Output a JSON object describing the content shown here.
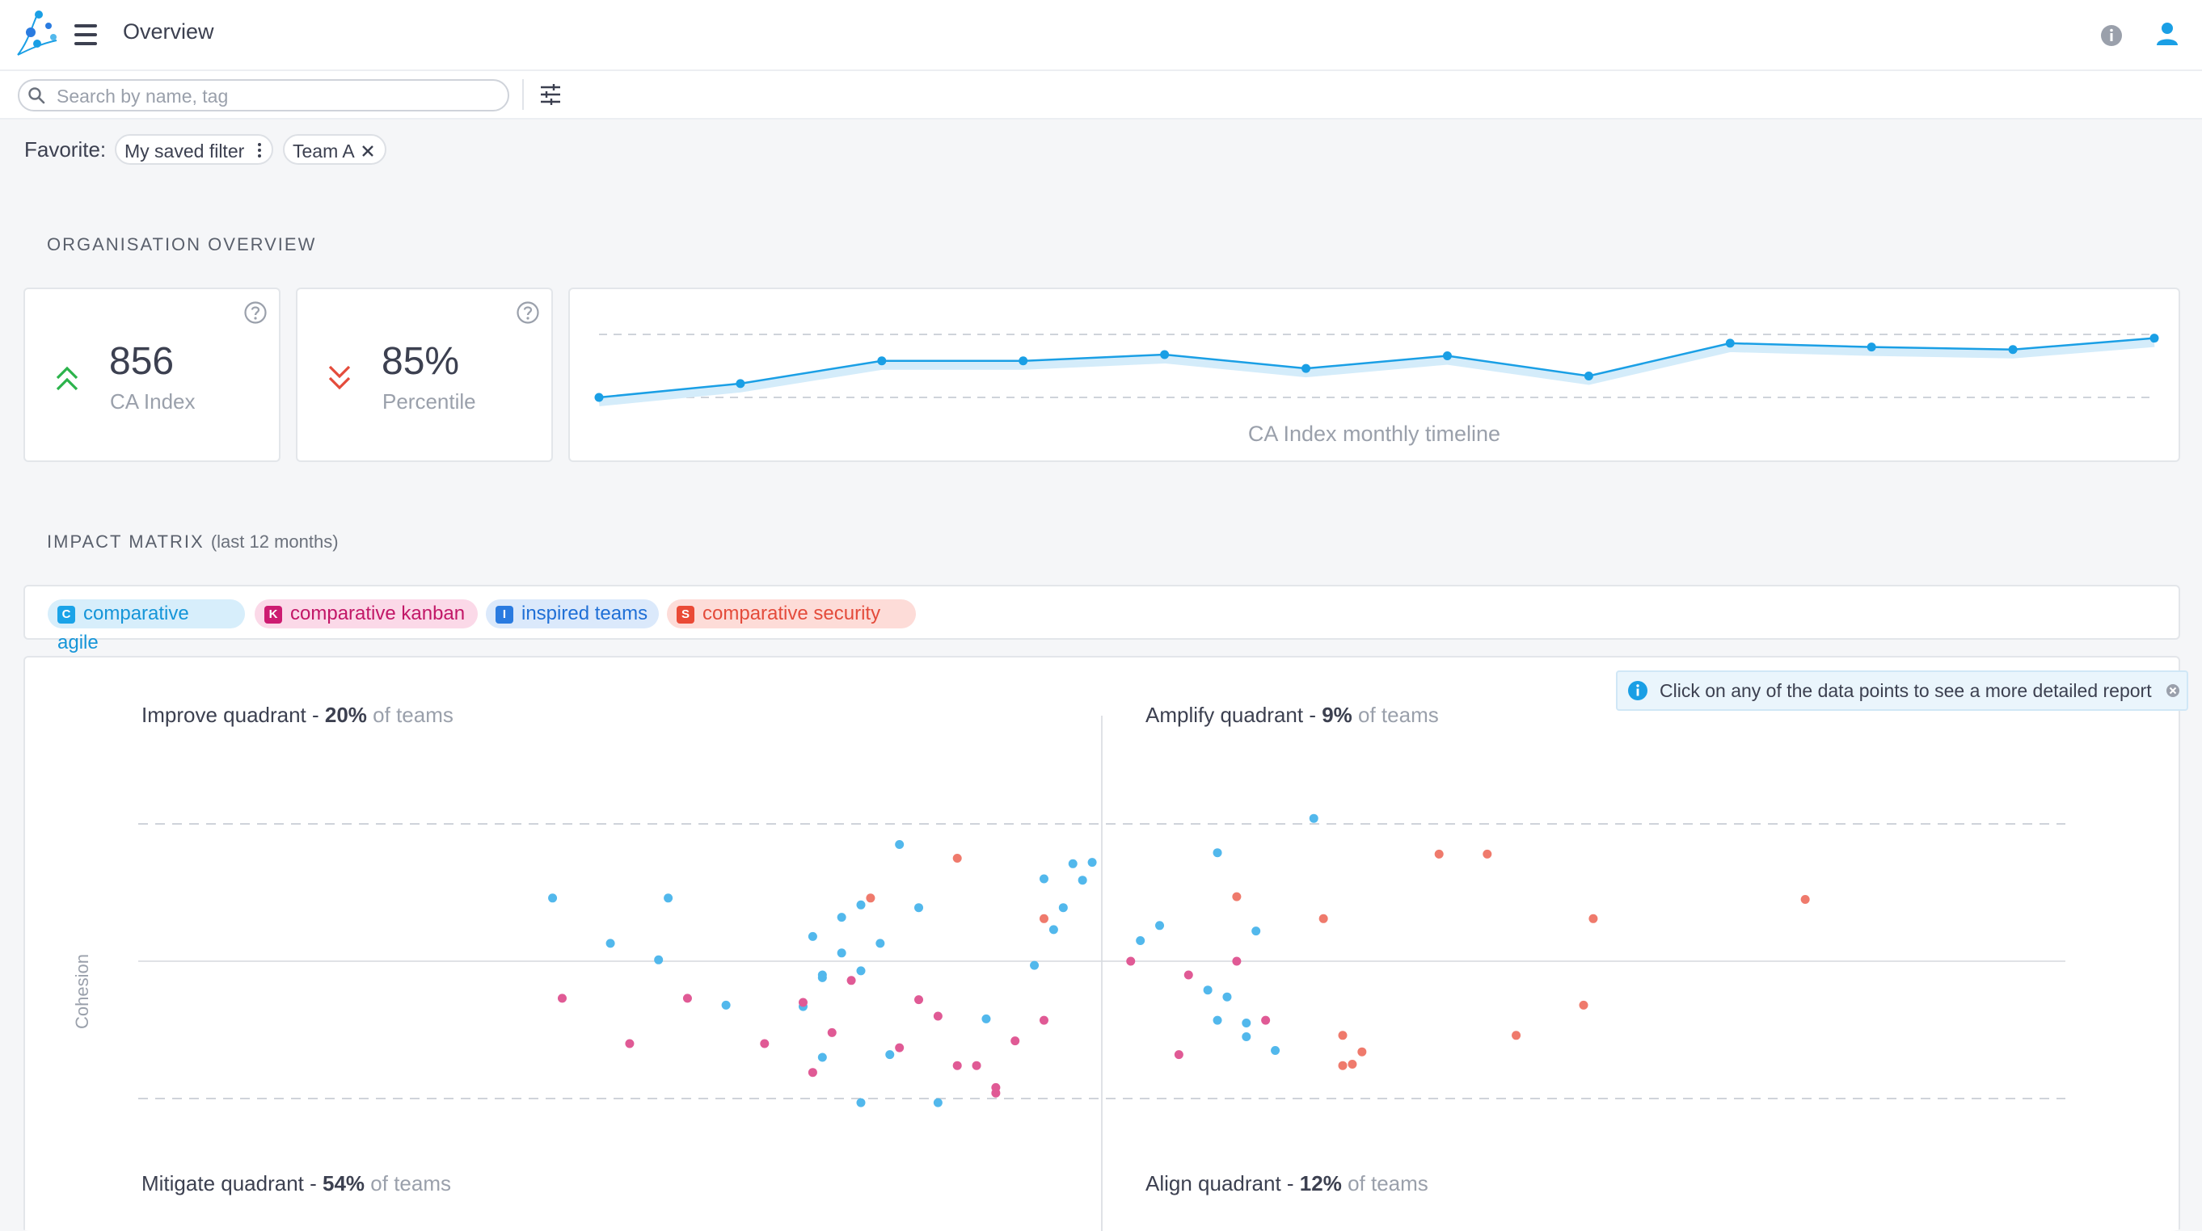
{
  "header": {
    "title": "Overview"
  },
  "search": {
    "placeholder": "Search by name, tag"
  },
  "favorites": {
    "label": "Favorite:",
    "chips": [
      "My saved filter",
      "Team A"
    ]
  },
  "org_overview": {
    "title": "ORGANISATION OVERVIEW",
    "kpis": [
      {
        "value": "856",
        "label": "CA Index",
        "trend": "up",
        "trend_color": "#2bb34b"
      },
      {
        "value": "85%",
        "label": "Percentile",
        "trend": "down",
        "trend_color": "#e44b3b"
      }
    ],
    "timeline_caption": "CA Index monthly timeline"
  },
  "impact": {
    "title": "IMPACT MATRIX",
    "subtitle": "(last 12 months)",
    "tags": [
      {
        "letter": "C",
        "label": "comparative agile",
        "color": "#1aa3e8"
      },
      {
        "letter": "K",
        "label": "comparative kanban",
        "color": "#cd1b71"
      },
      {
        "letter": "I",
        "label": "inspired teams",
        "color": "#2a7be0"
      },
      {
        "letter": "S",
        "label": "comparative security",
        "color": "#ea4a36"
      }
    ],
    "hint": "Click on any of the data points to see a more detailed report",
    "y_label": "Cohesion",
    "quadrants": {
      "improve": {
        "name": "Improve quadrant - ",
        "pct": "20%",
        "suffix": " of teams"
      },
      "amplify": {
        "name": "Amplify quadrant - ",
        "pct": "9%",
        "suffix": " of teams"
      },
      "mitigate": {
        "name": "Mitigate quadrant - ",
        "pct": "54%",
        "suffix": " of teams"
      },
      "align": {
        "name": "Align quadrant - ",
        "pct": "12%",
        "suffix": " of teams"
      }
    }
  },
  "chart_data": [
    {
      "type": "line",
      "title": "CA Index monthly timeline",
      "x": [
        1,
        2,
        3,
        4,
        5,
        6,
        7,
        8,
        9,
        10,
        11,
        12
      ],
      "values": [
        0.0,
        0.22,
        0.58,
        0.58,
        0.68,
        0.46,
        0.66,
        0.34,
        0.86,
        0.8,
        0.76,
        0.94
      ],
      "ylim": [
        0,
        1
      ],
      "reference_lines": [
        0,
        1
      ],
      "color": "#1a9fe5",
      "grid": false
    },
    {
      "type": "scatter",
      "ylabel": "Cohesion",
      "xlim": [
        -1,
        1
      ],
      "ylim": [
        -1,
        1
      ],
      "reference_lines": [
        -1,
        1
      ],
      "series": [
        {
          "color": "#52b8ec",
          "points": [
            [
              -0.57,
              0.46
            ],
            [
              -0.45,
              0.46
            ],
            [
              -0.51,
              0.13
            ],
            [
              -0.46,
              0.01
            ],
            [
              -0.39,
              -0.32
            ],
            [
              -0.27,
              0.06
            ],
            [
              -0.3,
              0.18
            ],
            [
              -0.25,
              0.41
            ],
            [
              -0.29,
              -0.12
            ],
            [
              -0.29,
              -0.7
            ],
            [
              -0.22,
              -0.68
            ],
            [
              -0.27,
              0.32
            ],
            [
              -0.21,
              0.85
            ],
            [
              -0.29,
              -0.1
            ],
            [
              -0.25,
              -0.07
            ],
            [
              -0.19,
              0.39
            ],
            [
              -0.23,
              0.13
            ],
            [
              -0.12,
              -0.42
            ],
            [
              -0.07,
              -0.03
            ],
            [
              -0.04,
              0.39
            ],
            [
              -0.06,
              0.6
            ],
            [
              -0.03,
              0.71
            ],
            [
              -0.05,
              0.23
            ],
            [
              -0.02,
              0.59
            ],
            [
              -0.01,
              0.72
            ],
            [
              -0.25,
              -1.03
            ],
            [
              0.04,
              0.15
            ],
            [
              -0.31,
              -0.33
            ],
            [
              0.06,
              0.26
            ],
            [
              0.12,
              0.79
            ],
            [
              0.13,
              -0.26
            ],
            [
              0.11,
              -0.21
            ],
            [
              0.15,
              -0.55
            ],
            [
              0.16,
              0.22
            ],
            [
              -0.17,
              -1.03
            ],
            [
              0.15,
              -0.45
            ],
            [
              0.12,
              -0.43
            ],
            [
              0.18,
              -0.65
            ],
            [
              0.22,
              1.04
            ]
          ]
        },
        {
          "color": "#e05a95",
          "points": [
            [
              -0.56,
              -0.27
            ],
            [
              -0.49,
              -0.6
            ],
            [
              -0.43,
              -0.27
            ],
            [
              -0.35,
              -0.6
            ],
            [
              -0.3,
              -0.81
            ],
            [
              -0.31,
              -0.3
            ],
            [
              -0.26,
              -0.14
            ],
            [
              -0.21,
              -0.63
            ],
            [
              -0.19,
              -0.28
            ],
            [
              -0.28,
              -0.52
            ],
            [
              -0.17,
              -0.4
            ],
            [
              -0.09,
              -0.58
            ],
            [
              -0.11,
              -0.92
            ],
            [
              -0.11,
              -0.96
            ],
            [
              -0.06,
              -0.43
            ],
            [
              0.03,
              0.0
            ],
            [
              0.09,
              -0.1
            ],
            [
              0.08,
              -0.68
            ],
            [
              -0.15,
              -0.76
            ],
            [
              -0.13,
              -0.76
            ],
            [
              0.17,
              -0.43
            ],
            [
              0.14,
              0.0
            ]
          ]
        },
        {
          "color": "#ef7a6c",
          "points": [
            [
              -0.24,
              0.46
            ],
            [
              -0.15,
              0.75
            ],
            [
              -0.06,
              0.31
            ],
            [
              0.14,
              0.47
            ],
            [
              0.23,
              0.31
            ],
            [
              0.35,
              0.78
            ],
            [
              0.4,
              0.78
            ],
            [
              0.51,
              0.31
            ],
            [
              0.73,
              0.45
            ],
            [
              0.5,
              -0.32
            ],
            [
              0.25,
              -0.54
            ],
            [
              0.27,
              -0.66
            ],
            [
              0.26,
              -0.75
            ],
            [
              0.43,
              -0.54
            ],
            [
              0.25,
              -0.76
            ]
          ]
        }
      ]
    }
  ]
}
